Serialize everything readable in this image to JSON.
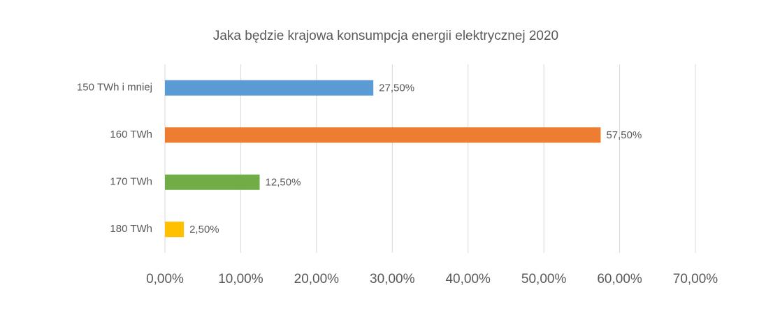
{
  "chart_data": {
    "type": "bar",
    "orientation": "horizontal",
    "title": "Jaka będzie krajowa konsumpcja energii elektrycznej 2020",
    "categories": [
      "150 TWh i mniej",
      "160 TWh",
      "170 TWh",
      "180 TWh"
    ],
    "values": [
      27.5,
      57.5,
      12.5,
      2.5
    ],
    "value_labels": [
      "27,50%",
      "57,50%",
      "12,50%",
      "2,50%"
    ],
    "colors": [
      "#5b9bd5",
      "#ed7d31",
      "#70ad47",
      "#ffc000"
    ],
    "xlim": [
      0,
      70
    ],
    "xticks": [
      {
        "value": 0,
        "label": "0,00%"
      },
      {
        "value": 10,
        "label": "10,00%"
      },
      {
        "value": 20,
        "label": "20,00%"
      },
      {
        "value": 30,
        "label": "30,00%"
      },
      {
        "value": 40,
        "label": "40,00%"
      },
      {
        "value": 50,
        "label": "50,00%"
      },
      {
        "value": 60,
        "label": "60,00%"
      },
      {
        "value": 70,
        "label": "70,00%"
      }
    ],
    "grid": true
  }
}
